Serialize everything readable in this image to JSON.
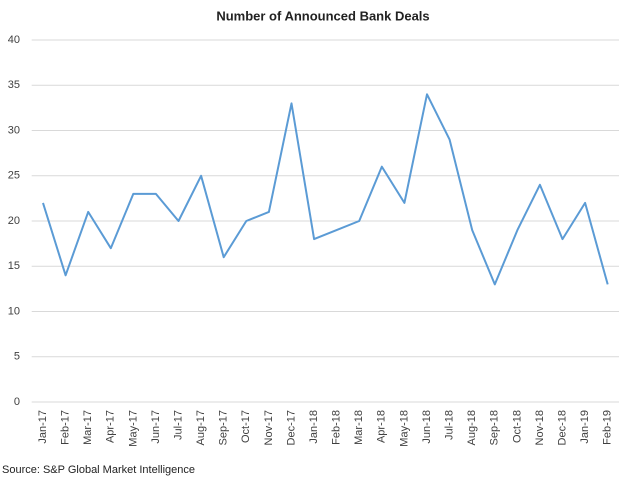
{
  "chart_data": {
    "type": "line",
    "title": "Number of Announced Bank Deals",
    "categories": [
      "Jan-17",
      "Feb-17",
      "Mar-17",
      "Apr-17",
      "May-17",
      "Jun-17",
      "Jul-17",
      "Aug-17",
      "Sep-17",
      "Oct-17",
      "Nov-17",
      "Dec-17",
      "Jan-18",
      "Feb-18",
      "Mar-18",
      "Apr-18",
      "May-18",
      "Jun-18",
      "Jul-18",
      "Aug-18",
      "Sep-18",
      "Oct-18",
      "Nov-18",
      "Dec-18",
      "Jan-19",
      "Feb-19"
    ],
    "values": [
      22,
      14,
      21,
      17,
      23,
      23,
      20,
      25,
      16,
      20,
      21,
      33,
      18,
      19,
      20,
      26,
      22,
      34,
      29,
      19,
      13,
      19,
      24,
      18,
      22,
      13
    ],
    "color": "#5b9bd5",
    "ylim": [
      0,
      40
    ],
    "yticks": [
      0,
      5,
      10,
      15,
      20,
      25,
      30,
      35,
      40
    ],
    "grid": true,
    "source": "Source: S&P Global Market Intelligence"
  }
}
